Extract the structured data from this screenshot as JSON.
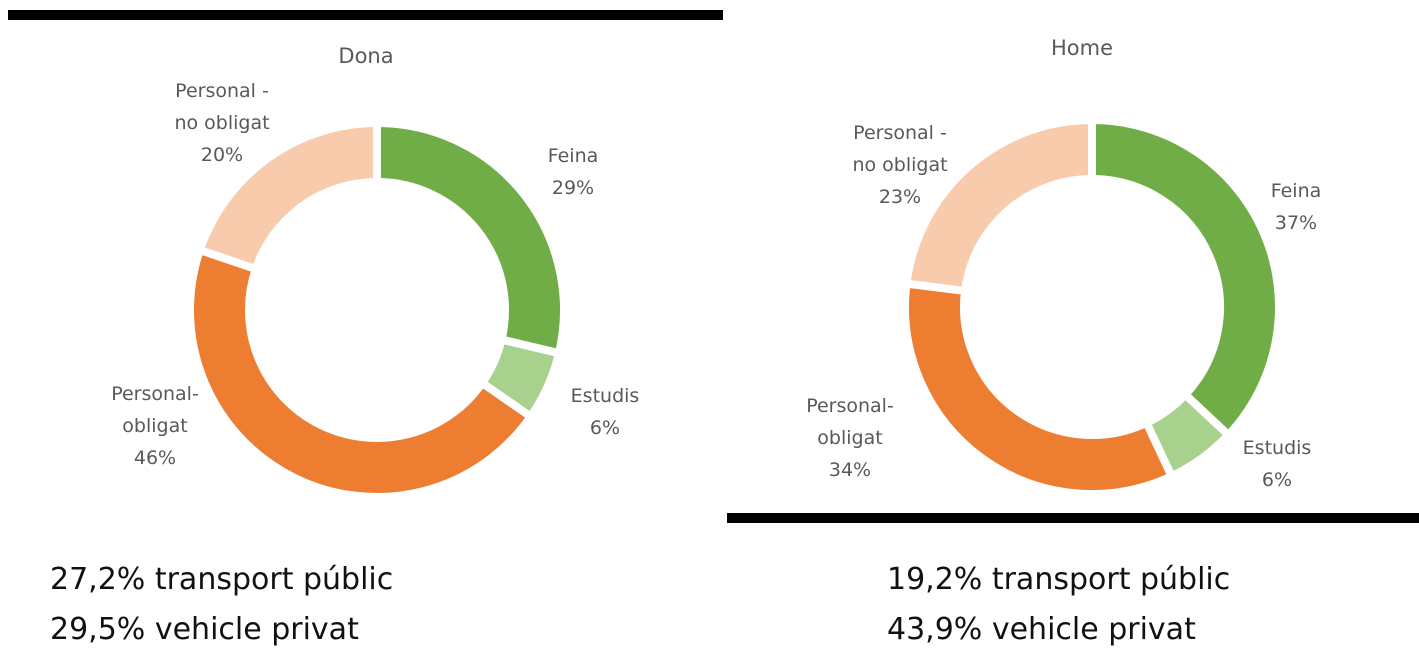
{
  "chart_data": [
    {
      "type": "donut",
      "title": "Dona",
      "categories": [
        "Feina",
        "Estudis",
        "Personal-\nobligat",
        "Personal -\nno obligat"
      ],
      "values": [
        29,
        6,
        46,
        20
      ],
      "value_labels": [
        "29%",
        "6%",
        "46%",
        "20%"
      ],
      "colors": [
        "#70ad47",
        "#a9d18e",
        "#ed7d31",
        "#f8cbad"
      ],
      "annotations": [
        "27,2% transport públic",
        "29,5% vehicle privat"
      ]
    },
    {
      "type": "donut",
      "title": "Home",
      "categories": [
        "Feina",
        "Estudis",
        "Personal-\nobligat",
        "Personal -\nno obligat"
      ],
      "values": [
        37,
        6,
        34,
        23
      ],
      "value_labels": [
        "37%",
        "6%",
        "34%",
        "23%"
      ],
      "colors": [
        "#70ad47",
        "#a9d18e",
        "#ed7d31",
        "#f8cbad"
      ],
      "annotations": [
        "19,2% transport públic",
        "43,9% vehicle privat"
      ]
    }
  ]
}
